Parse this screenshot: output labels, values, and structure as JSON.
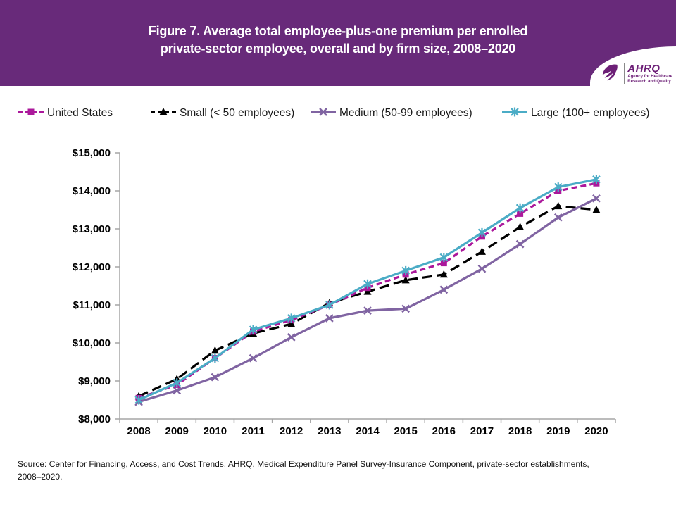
{
  "header": {
    "title_line1": "Figure 7. Average total employee-plus-one premium per enrolled",
    "title_line2": "private-sector employee, overall and by firm size, 2008–2020",
    "banner_color": "#682a7a",
    "logo": {
      "name": "AHRQ",
      "tagline_line1": "Agency for Healthcare",
      "tagline_line2": "Research and Quality"
    }
  },
  "chart_data": {
    "type": "line",
    "title": "Figure 7. Average total employee-plus-one premium per enrolled private-sector employee, overall and by firm size, 2008–2020",
    "x": [
      2008,
      2009,
      2010,
      2011,
      2012,
      2013,
      2014,
      2015,
      2016,
      2017,
      2018,
      2019,
      2020
    ],
    "series": [
      {
        "name": "United States",
        "color": "#ab189b",
        "line_style": "dashed",
        "marker": "square",
        "values": [
          8550,
          8900,
          9600,
          10300,
          10600,
          11000,
          11450,
          11800,
          12100,
          12800,
          13400,
          14000,
          14200
        ]
      },
      {
        "name": "Small (< 50 employees)",
        "color": "#000000",
        "line_style": "long_dash",
        "marker": "triangle",
        "values": [
          8600,
          9050,
          9800,
          10250,
          10500,
          11050,
          11350,
          11650,
          11800,
          12400,
          13050,
          13600,
          13500
        ]
      },
      {
        "name": "Medium (50-99 employees)",
        "color": "#8064a2",
        "line_style": "solid",
        "marker": "x",
        "values": [
          8450,
          8750,
          9100,
          9600,
          10150,
          10650,
          10850,
          10900,
          11400,
          11950,
          12600,
          13300,
          13800
        ]
      },
      {
        "name": "Large (100+ employees)",
        "color": "#4bacc6",
        "line_style": "solid",
        "marker": "asterisk",
        "values": [
          8500,
          8950,
          9600,
          10350,
          10650,
          11000,
          11550,
          11900,
          12250,
          12900,
          13550,
          14100,
          14300
        ]
      }
    ],
    "xlabel": "",
    "ylabel": "",
    "ylim": [
      8000,
      15000
    ],
    "ytick_step": 1000,
    "ytick_prefix": "$",
    "grid": false,
    "legend_position": "top",
    "axis_color": "#a6a6a6"
  },
  "source": {
    "line1": "Source: Center for Financing, Access, and Cost Trends, AHRQ, Medical Expenditure Panel Survey-Insurance Component, private-sector establishments,",
    "line2": "2008–2020."
  }
}
